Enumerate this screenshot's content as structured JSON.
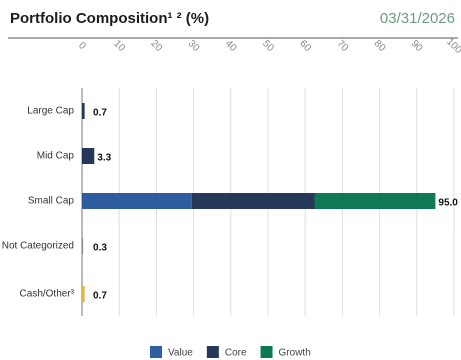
{
  "chart_data": {
    "type": "stacked-barh",
    "title": "Portfolio Composition¹ ² (%)",
    "date": "03/31/2026",
    "categories": [
      "Large Cap",
      "Mid Cap",
      "Small Cap",
      "Not Categorized",
      "Cash/Other³"
    ],
    "series": [
      {
        "name": "Value",
        "color": "#2e5c9e",
        "values": [
          null,
          null,
          29.5,
          null,
          null
        ]
      },
      {
        "name": "Core",
        "color": "#253858",
        "values": [
          0.7,
          3.3,
          33,
          null,
          null
        ]
      },
      {
        "name": "Growth",
        "color": "#0e7a55",
        "values": [
          null,
          null,
          32.5,
          null,
          null
        ]
      }
    ],
    "other": {
      "values": [
        null,
        null,
        null,
        0.3,
        0.7
      ],
      "colors": [
        null,
        null,
        null,
        "#8c8c8c",
        "#e2b443"
      ]
    },
    "totals": {
      "values": [
        0.7,
        3.3,
        95,
        0.3,
        0.7
      ],
      "value_labels": [
        "0.7",
        "3.3",
        "95.0",
        "0.3",
        "0.7"
      ]
    },
    "xlim": [
      0,
      100
    ],
    "xticks": [
      0,
      10,
      20,
      30,
      40,
      50,
      60,
      70,
      80,
      90,
      100
    ],
    "grid": true
  }
}
